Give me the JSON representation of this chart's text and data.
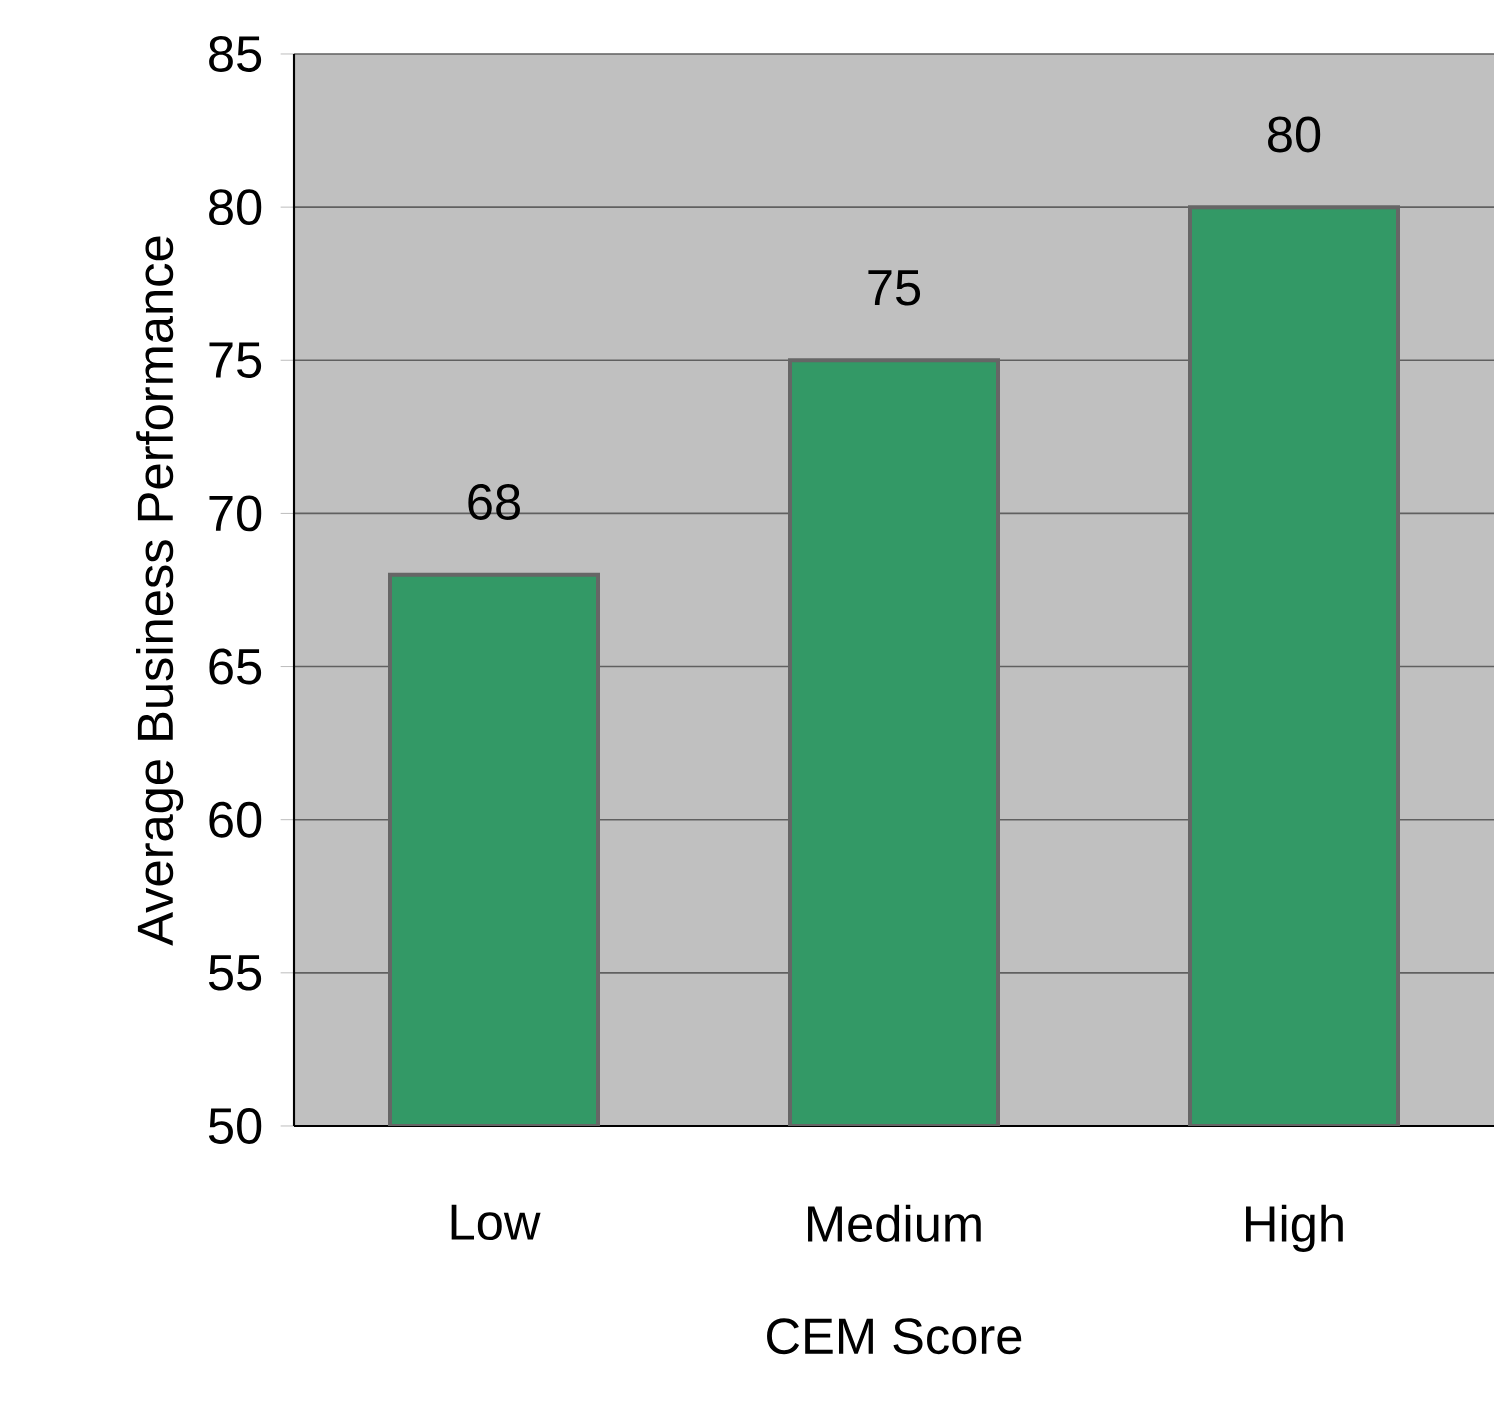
{
  "chart_data": {
    "type": "bar",
    "xlabel": "CEM Score",
    "ylabel": "Average Business Performance",
    "categories": [
      "Low",
      "Medium",
      "High"
    ],
    "values": [
      68,
      75,
      80
    ],
    "color": "#339966",
    "ylim": [
      50,
      85
    ],
    "yticks": [
      50,
      55,
      60,
      65,
      70,
      75,
      80,
      85
    ],
    "grid": "y",
    "data_labels": true
  }
}
